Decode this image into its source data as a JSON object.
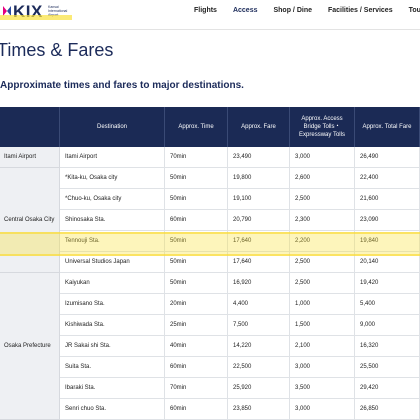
{
  "header": {
    "logo": "KIX",
    "logo_sub": "Kansai International Airport",
    "nav": [
      "Flights",
      "Access",
      "Shop / Dine",
      "Facilities / Services",
      "Tourist information"
    ],
    "active_nav": 1
  },
  "page": {
    "title": "Times & Fares",
    "subtitle": "Approximate times and fares to major destinations."
  },
  "table": {
    "columns": [
      "Destination",
      "Approx. Time",
      "Approx. Fare",
      "Approx. Access Bridge Tolls・Expressway Tolls",
      "Approx. Total Fare"
    ],
    "groups": [
      {
        "label": "Itami Airport",
        "rows": [
          [
            "Itami Airport",
            "70min",
            "23,490",
            "3,000",
            "26,490"
          ]
        ]
      },
      {
        "label": "Central Osaka City",
        "rows": [
          [
            "*Kita-ku, Osaka city",
            "50min",
            "19,800",
            "2,600",
            "22,400"
          ],
          [
            "*Chuo-ku, Osaka city",
            "50min",
            "19,100",
            "2,500",
            "21,600"
          ],
          [
            "Shinosaka Sta.",
            "60min",
            "20,790",
            "2,300",
            "23,090"
          ],
          [
            "Tennouji Sta.",
            "50min",
            "17,640",
            "2,200",
            "19,840"
          ],
          [
            "Universal Studios Japan",
            "50min",
            "17,640",
            "2,500",
            "20,140"
          ]
        ]
      },
      {
        "label": "Osaka Prefecture",
        "rows": [
          [
            "Kaiyukan",
            "50min",
            "16,920",
            "2,500",
            "19,420"
          ],
          [
            "Izumisano Sta.",
            "20min",
            "4,400",
            "1,000",
            "5,400"
          ],
          [
            "Kishiwada Sta.",
            "25min",
            "7,500",
            "1,500",
            "9,000"
          ],
          [
            "JR Sakai shi Sta.",
            "40min",
            "14,220",
            "2,100",
            "16,320"
          ],
          [
            "Suita Sta.",
            "60min",
            "22,500",
            "3,000",
            "25,500"
          ],
          [
            "Ibaraki Sta.",
            "70min",
            "25,920",
            "3,500",
            "29,420"
          ],
          [
            "Senri chuo Sta.",
            "60min",
            "23,850",
            "3,000",
            "26,850"
          ]
        ]
      }
    ]
  }
}
